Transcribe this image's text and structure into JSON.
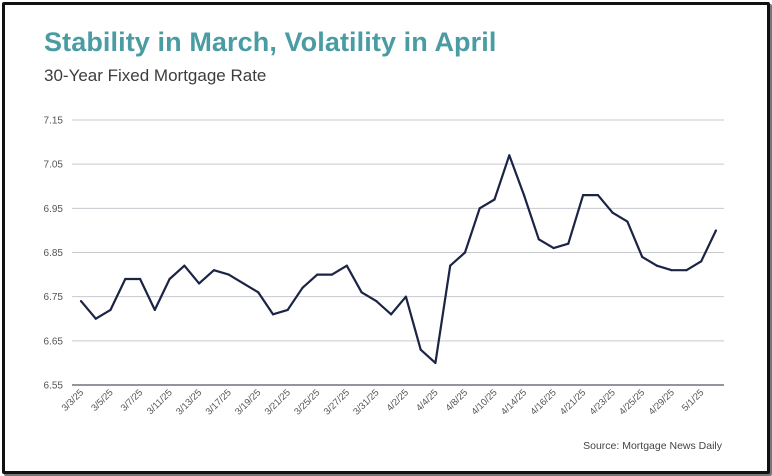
{
  "title": "Stability in March, Volatility in April",
  "subtitle": "30-Year Fixed Mortgage Rate",
  "source": "Source: Mortgage News Daily",
  "colors": {
    "title": "#4a9ca3",
    "line": "#1b2445",
    "grid": "#c7c9cf",
    "axis": "#555566"
  },
  "chart_data": {
    "type": "line",
    "ylim": [
      6.55,
      7.15
    ],
    "yticks": [
      "7.15",
      "7.05",
      "6.95",
      "6.85",
      "6.75",
      "6.65",
      "6.55"
    ],
    "x_tick_labels": [
      "3/3/25",
      "3/5/25",
      "3/7/25",
      "3/11/25",
      "3/13/25",
      "3/17/25",
      "3/19/25",
      "3/21/25",
      "3/25/25",
      "3/27/25",
      "3/31/25",
      "4/2/25",
      "4/4/25",
      "4/8/25",
      "4/10/25",
      "4/14/25",
      "4/16/25",
      "4/21/25",
      "4/23/25",
      "4/25/25",
      "4/29/25",
      "5/1/25"
    ],
    "x": [
      "3/3/25",
      "3/4/25",
      "3/5/25",
      "3/6/25",
      "3/7/25",
      "3/10/25",
      "3/11/25",
      "3/12/25",
      "3/13/25",
      "3/14/25",
      "3/17/25",
      "3/18/25",
      "3/19/25",
      "3/20/25",
      "3/21/25",
      "3/24/25",
      "3/25/25",
      "3/26/25",
      "3/27/25",
      "3/28/25",
      "3/31/25",
      "4/1/25",
      "4/2/25",
      "4/3/25",
      "4/4/25",
      "4/7/25",
      "4/8/25",
      "4/9/25",
      "4/10/25",
      "4/11/25",
      "4/14/25",
      "4/15/25",
      "4/16/25",
      "4/17/25",
      "4/21/25",
      "4/22/25",
      "4/23/25",
      "4/24/25",
      "4/25/25",
      "4/28/25",
      "4/29/25",
      "4/30/25",
      "5/1/25",
      "5/2/25"
    ],
    "values": [
      6.74,
      6.7,
      6.72,
      6.79,
      6.79,
      6.72,
      6.79,
      6.82,
      6.78,
      6.81,
      6.8,
      6.78,
      6.76,
      6.71,
      6.72,
      6.77,
      6.8,
      6.8,
      6.82,
      6.76,
      6.74,
      6.71,
      6.75,
      6.63,
      6.6,
      6.82,
      6.85,
      6.95,
      6.97,
      7.07,
      6.98,
      6.88,
      6.86,
      6.87,
      6.98,
      6.98,
      6.94,
      6.92,
      6.84,
      6.82,
      6.81,
      6.81,
      6.83,
      6.9
    ],
    "grid": "horizontal",
    "legend": "none"
  }
}
